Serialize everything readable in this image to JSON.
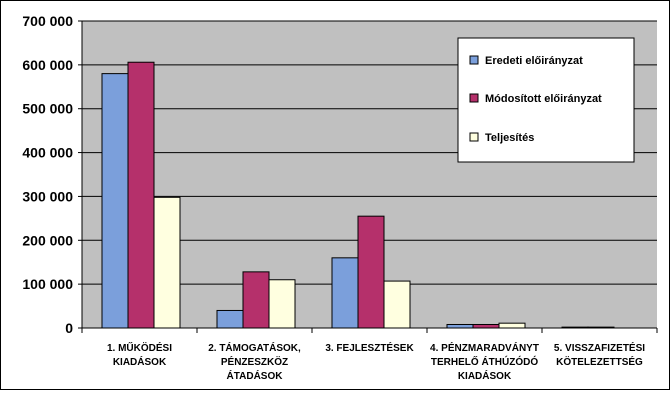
{
  "chart_data": {
    "type": "bar",
    "categories": [
      [
        "1. MŰKÖDÉSI",
        "KIADÁSOK"
      ],
      [
        "2. TÁMOGATÁSOK,",
        "PÉNZESZKÖZ",
        "ÁTADÁSOK"
      ],
      [
        "3. FEJLESZTÉSEK"
      ],
      [
        "4. PÉNZMARADVÁNYT",
        "TERHELŐ ÁTHÚZÓDÓ",
        "KIADÁSOK"
      ],
      [
        "5. VISSZAFIZETÉSI",
        "KÖTELEZETTSÉG"
      ]
    ],
    "series": [
      {
        "name": "Eredeti előirányzat",
        "color": "#7b9fdb",
        "values": [
          580000,
          40000,
          160000,
          8000,
          2000
        ]
      },
      {
        "name": "Módosított előirányzat",
        "color": "#b5306b",
        "values": [
          606000,
          128000,
          255000,
          8000,
          2000
        ]
      },
      {
        "name": "Teljesítés",
        "color": "#ffffe0",
        "values": [
          298000,
          110000,
          107000,
          11000,
          0
        ]
      }
    ],
    "ylim": [
      0,
      700000
    ],
    "yticks": [
      0,
      100000,
      200000,
      300000,
      400000,
      500000,
      600000,
      700000
    ],
    "ytick_labels": [
      "0",
      "100 000",
      "200 000",
      "300 000",
      "400 000",
      "500 000",
      "600 000",
      "700 000"
    ],
    "plot_background": "#c0c0c0",
    "grid": "horizontal",
    "legend_position": "right"
  }
}
